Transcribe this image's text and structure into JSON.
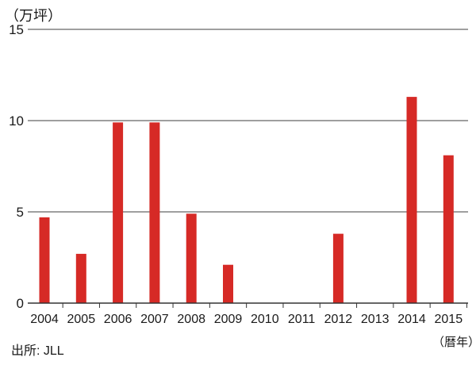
{
  "chart_data": {
    "type": "bar",
    "ylabel": "（万坪）",
    "xlabel": "（暦年）",
    "categories": [
      "2004",
      "2005",
      "2006",
      "2007",
      "2008",
      "2009",
      "2010",
      "2011",
      "2012",
      "2013",
      "2014",
      "2015"
    ],
    "values": [
      4.7,
      2.7,
      9.9,
      9.9,
      4.9,
      2.1,
      0,
      0,
      3.8,
      0,
      11.3,
      8.1
    ],
    "yticks": [
      "0",
      "5",
      "10",
      "15"
    ],
    "ylim": [
      0,
      15
    ],
    "grid": true,
    "bar_color": "#d62a26"
  },
  "source": "出所: JLL"
}
